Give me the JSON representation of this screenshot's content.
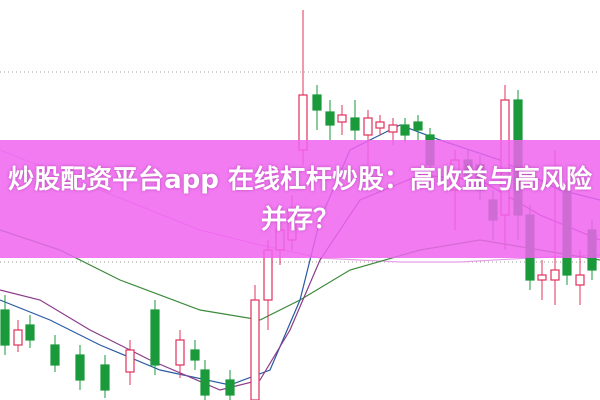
{
  "article": {
    "title": "炒股配资平台app 在线杠杆炒股：高收益与高风险并存？"
  },
  "colors": {
    "banner": "#f064f0",
    "up_candle": "#e0305a",
    "down_candle": "#1a9a3a",
    "ma_lines": [
      "#e8a0e8",
      "#3a8a3a",
      "#2a5aa0",
      "#8a3a8a"
    ]
  }
}
